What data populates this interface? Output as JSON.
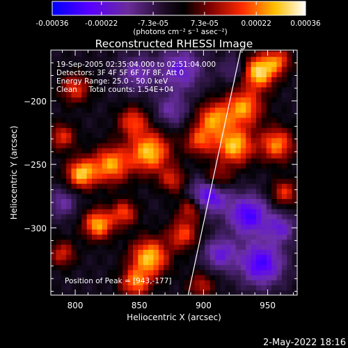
{
  "colorbar": {
    "tick_labels": [
      "-0.00036",
      "-0.00022",
      "-7.3e-05",
      "7.3e-05",
      "0.00022",
      "0.00036"
    ],
    "tick_values": [
      -0.00036,
      -0.00022,
      -7.3e-05,
      7.3e-05,
      0.00022,
      0.00036
    ],
    "range": [
      -0.00036,
      0.00036
    ],
    "unit_label": "(photons cm⁻² s⁻¹ asec⁻²)",
    "colors": [
      "#0000ff",
      "#5a00ff",
      "#6a2c9a",
      "#000000",
      "#7a0000",
      "#ff2a00",
      "#ffc000",
      "#ffffff"
    ]
  },
  "footer_date": "2-May-2022 18:16",
  "chart_data": {
    "type": "heatmap",
    "title": "Reconstructed RHESSI Image",
    "xlabel": "Heliocentric X (arcsec)",
    "ylabel": "Heliocentric Y (arcsec)",
    "xlim": [
      781,
      973
    ],
    "ylim": [
      -353,
      -160
    ],
    "x_ticks": [
      800,
      850,
      900,
      950
    ],
    "x_tick_labels": [
      "800",
      "850",
      "900",
      "950"
    ],
    "y_ticks": [
      -200,
      -250,
      -300
    ],
    "y_tick_labels": [
      "−200",
      "−250",
      "−300"
    ],
    "annotations": [
      "19-Sep-2005 02:35:04.000 to 02:51:04.000",
      "Detectors: 3F 4F 5F 6F 7F 8F, Att 0",
      "Energy Range: 25.0 - 50.0 keV",
      "Clean     Total counts: 1.54E+04"
    ],
    "peak_label": "Position of Peak = [943,-177]",
    "peak": [
      943,
      -177
    ],
    "limb_line": [
      [
        888,
        -353
      ],
      [
        929,
        -160
      ]
    ],
    "sources": [
      {
        "x": 943,
        "y": -177,
        "amp": 0.95,
        "sigma": 9
      },
      {
        "x": 958,
        "y": -168,
        "amp": 0.55,
        "sigma": 7
      },
      {
        "x": 931,
        "y": -205,
        "amp": 0.75,
        "sigma": 10
      },
      {
        "x": 908,
        "y": -214,
        "amp": 0.7,
        "sigma": 9
      },
      {
        "x": 924,
        "y": -235,
        "amp": 0.85,
        "sigma": 10
      },
      {
        "x": 897,
        "y": -231,
        "amp": 0.55,
        "sigma": 8
      },
      {
        "x": 957,
        "y": -234,
        "amp": 0.7,
        "sigma": 9
      },
      {
        "x": 963,
        "y": -272,
        "amp": 0.5,
        "sigma": 7
      },
      {
        "x": 910,
        "y": -262,
        "amp": 0.55,
        "sigma": 8
      },
      {
        "x": 858,
        "y": -240,
        "amp": 0.85,
        "sigma": 11
      },
      {
        "x": 845,
        "y": -216,
        "amp": 0.55,
        "sigma": 8
      },
      {
        "x": 828,
        "y": -250,
        "amp": 0.75,
        "sigma": 10
      },
      {
        "x": 805,
        "y": -257,
        "amp": 0.85,
        "sigma": 8
      },
      {
        "x": 790,
        "y": -228,
        "amp": 0.5,
        "sigma": 7
      },
      {
        "x": 800,
        "y": -190,
        "amp": 0.5,
        "sigma": 8
      },
      {
        "x": 818,
        "y": -297,
        "amp": 0.8,
        "sigma": 8
      },
      {
        "x": 838,
        "y": -288,
        "amp": 0.55,
        "sigma": 7
      },
      {
        "x": 858,
        "y": -323,
        "amp": 0.85,
        "sigma": 10
      },
      {
        "x": 884,
        "y": -305,
        "amp": 0.55,
        "sigma": 8
      },
      {
        "x": 847,
        "y": -343,
        "amp": 0.65,
        "sigma": 8
      },
      {
        "x": 890,
        "y": -285,
        "amp": 0.45,
        "sigma": 7
      },
      {
        "x": 790,
        "y": -320,
        "amp": 0.45,
        "sigma": 7
      },
      {
        "x": 876,
        "y": -262,
        "amp": 0.45,
        "sigma": 7
      },
      {
        "x": 898,
        "y": -345,
        "amp": 0.4,
        "sigma": 7
      },
      {
        "x": 905,
        "y": -273,
        "amp": -0.75,
        "sigma": 10
      },
      {
        "x": 935,
        "y": -290,
        "amp": -0.7,
        "sigma": 11
      },
      {
        "x": 945,
        "y": -328,
        "amp": -0.7,
        "sigma": 12
      },
      {
        "x": 882,
        "y": -175,
        "amp": -0.5,
        "sigma": 12
      },
      {
        "x": 848,
        "y": -178,
        "amp": -0.4,
        "sigma": 10
      },
      {
        "x": 875,
        "y": -207,
        "amp": -0.35,
        "sigma": 9
      },
      {
        "x": 913,
        "y": -320,
        "amp": -0.5,
        "sigma": 9
      },
      {
        "x": 960,
        "y": -300,
        "amp": -0.45,
        "sigma": 8
      },
      {
        "x": 790,
        "y": -280,
        "amp": -0.35,
        "sigma": 8
      },
      {
        "x": 925,
        "y": -175,
        "amp": -0.3,
        "sigma": 8
      }
    ]
  }
}
